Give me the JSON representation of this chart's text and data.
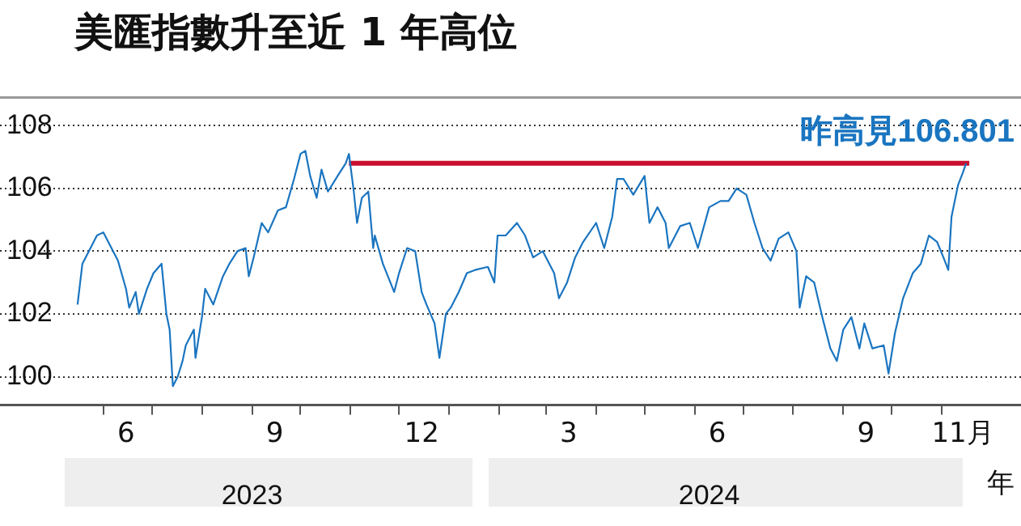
{
  "chart_data": {
    "type": "line",
    "title": "美匯指數升至近 1 年高位",
    "xlim": [
      "2023-03-29",
      "2024-12-20"
    ],
    "xticks": [
      {
        "value": "2023-06-01",
        "label": null
      },
      {
        "value": "2023-06-15",
        "label": "6"
      },
      {
        "value": "2023-07-01",
        "label": null
      },
      {
        "value": "2023-08-01",
        "label": null
      },
      {
        "value": "2023-09-01",
        "label": null
      },
      {
        "value": "2023-09-15",
        "label": "9"
      },
      {
        "value": "2023-10-01",
        "label": null
      },
      {
        "value": "2023-11-01",
        "label": null
      },
      {
        "value": "2023-12-01",
        "label": null
      },
      {
        "value": "2023-12-15",
        "label": "12"
      },
      {
        "value": "2024-01-01",
        "label": null
      },
      {
        "value": "2024-02-01",
        "label": null
      },
      {
        "value": "2024-03-01",
        "label": null
      },
      {
        "value": "2024-03-15",
        "label": "3"
      },
      {
        "value": "2024-04-01",
        "label": null
      },
      {
        "value": "2024-05-01",
        "label": null
      },
      {
        "value": "2024-06-01",
        "label": null
      },
      {
        "value": "2024-06-15",
        "label": "6"
      },
      {
        "value": "2024-07-01",
        "label": null
      },
      {
        "value": "2024-08-01",
        "label": null
      },
      {
        "value": "2024-09-01",
        "label": null
      },
      {
        "value": "2024-09-15",
        "label": "9"
      },
      {
        "value": "2024-10-01",
        "label": null
      },
      {
        "value": "2024-11-01",
        "label": null
      },
      {
        "value": "2024-11-14",
        "label": "11月"
      }
    ],
    "x2lim": [
      "2023-03-29",
      "2024-12-20"
    ],
    "x2ticks": [
      {
        "value": "2023-09-01",
        "label": "2023"
      },
      {
        "value": "2024-06-10",
        "label": "2024"
      }
    ],
    "x2label": "年",
    "ylim": [
      99.1,
      108.9
    ],
    "yticks": [
      100,
      102,
      104,
      106,
      108
    ],
    "grid": "y",
    "legend": false,
    "series": [
      {
        "color": "#1a75c0",
        "x": [
          "2023-05-16",
          "2023-05-19",
          "2023-05-23",
          "2023-05-28",
          "2023-06-01",
          "2023-06-05",
          "2023-06-10",
          "2023-06-15",
          "2023-06-17",
          "2023-06-21",
          "2023-06-23",
          "2023-06-28",
          "2023-07-02",
          "2023-07-07",
          "2023-07-10",
          "2023-07-12",
          "2023-07-14",
          "2023-07-17",
          "2023-07-20",
          "2023-07-22",
          "2023-07-27",
          "2023-07-28",
          "2023-08-01",
          "2023-08-03",
          "2023-08-08",
          "2023-08-14",
          "2023-08-18",
          "2023-08-23",
          "2023-08-28",
          "2023-08-30",
          "2023-09-02",
          "2023-09-07",
          "2023-09-11",
          "2023-09-17",
          "2023-09-22",
          "2023-09-27",
          "2023-10-01",
          "2023-10-04",
          "2023-10-07",
          "2023-10-11",
          "2023-10-14",
          "2023-10-18",
          "2023-10-24",
          "2023-10-29",
          "2023-10-31",
          "2023-11-03",
          "2023-11-05",
          "2023-11-08",
          "2023-11-12",
          "2023-11-15",
          "2023-11-16",
          "2023-11-21",
          "2023-11-28",
          "2023-12-01",
          "2023-12-06",
          "2023-12-11",
          "2023-12-15",
          "2023-12-18",
          "2023-12-23",
          "2023-12-26",
          "2023-12-30",
          "2024-01-02",
          "2024-01-07",
          "2024-01-12",
          "2024-01-17",
          "2024-01-25",
          "2024-01-29",
          "2024-01-31",
          "2024-02-05",
          "2024-02-12",
          "2024-02-17",
          "2024-02-22",
          "2024-02-28",
          "2024-03-06",
          "2024-03-09",
          "2024-03-14",
          "2024-03-19",
          "2024-03-24",
          "2024-04-01",
          "2024-04-06",
          "2024-04-11",
          "2024-04-14",
          "2024-04-18",
          "2024-04-24",
          "2024-05-01",
          "2024-05-04",
          "2024-05-09",
          "2024-05-14",
          "2024-05-16",
          "2024-05-23",
          "2024-05-29",
          "2024-06-03",
          "2024-06-10",
          "2024-06-17",
          "2024-06-22",
          "2024-06-27",
          "2024-07-03",
          "2024-07-08",
          "2024-07-13",
          "2024-07-18",
          "2024-07-23",
          "2024-07-29",
          "2024-08-03",
          "2024-08-05",
          "2024-08-09",
          "2024-08-14",
          "2024-08-19",
          "2024-08-24",
          "2024-08-28",
          "2024-09-01",
          "2024-09-06",
          "2024-09-11",
          "2024-09-14",
          "2024-09-19",
          "2024-09-26",
          "2024-09-29",
          "2024-10-03",
          "2024-10-08",
          "2024-10-14",
          "2024-10-19",
          "2024-10-24",
          "2024-10-29",
          "2024-11-02",
          "2024-11-05",
          "2024-11-07",
          "2024-11-11",
          "2024-11-14",
          "2024-11-16"
        ],
        "values": [
          102.3,
          103.6,
          104.0,
          104.5,
          104.6,
          104.2,
          103.7,
          102.8,
          102.2,
          102.7,
          102.0,
          102.8,
          103.3,
          103.6,
          102.0,
          101.5,
          99.7,
          100.0,
          100.5,
          101.0,
          101.5,
          100.6,
          101.9,
          102.8,
          102.3,
          103.2,
          103.6,
          104.0,
          104.1,
          103.2,
          103.8,
          104.9,
          104.6,
          105.3,
          105.4,
          106.3,
          107.1,
          107.2,
          106.4,
          105.7,
          106.6,
          105.9,
          106.4,
          106.8,
          107.1,
          105.9,
          104.9,
          105.7,
          105.9,
          104.1,
          104.5,
          103.6,
          102.7,
          103.3,
          104.1,
          104.0,
          102.7,
          102.3,
          101.7,
          100.6,
          102.0,
          102.2,
          102.7,
          103.3,
          103.4,
          103.5,
          103.0,
          104.5,
          104.5,
          104.9,
          104.5,
          103.8,
          104.0,
          103.3,
          102.5,
          103.0,
          103.8,
          104.3,
          104.9,
          104.1,
          105.1,
          106.3,
          106.3,
          105.8,
          106.4,
          104.9,
          105.4,
          104.9,
          104.1,
          104.8,
          104.9,
          104.1,
          105.4,
          105.6,
          105.6,
          106.0,
          105.8,
          104.9,
          104.1,
          103.7,
          104.4,
          104.6,
          104.0,
          102.2,
          103.2,
          103.0,
          101.9,
          100.9,
          100.5,
          101.5,
          101.9,
          100.9,
          101.7,
          100.9,
          101.0,
          100.1,
          101.4,
          102.5,
          103.3,
          103.6,
          104.5,
          104.3,
          103.8,
          103.4,
          105.1,
          106.1,
          106.5,
          106.8
        ]
      },
      {
        "type": "line",
        "color": "#c8102e",
        "x": [
          "2023-10-31",
          "2024-11-18"
        ],
        "values": [
          106.801,
          106.801
        ]
      }
    ],
    "annotations": [
      {
        "text": "昨高見106.801",
        "x": "2024-11-18",
        "y": 106.801
      }
    ]
  }
}
